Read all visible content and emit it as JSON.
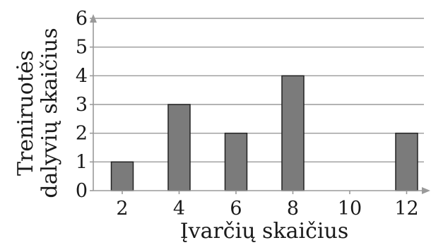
{
  "chart_data": {
    "type": "bar",
    "categories": [
      "2",
      "4",
      "6",
      "8",
      "10",
      "12"
    ],
    "values": [
      1,
      3,
      2,
      4,
      0,
      2
    ],
    "xlabel": "Įvarčių skaičius",
    "ylabel_lines": [
      "Treniruotės",
      "dalyvių skaičius"
    ],
    "yticks": [
      "0",
      "1",
      "2",
      "3",
      "4",
      "5",
      "6"
    ],
    "ylim": [
      0,
      6
    ],
    "grid": true,
    "bar_color": "#7b7b7b",
    "legend": "none"
  }
}
